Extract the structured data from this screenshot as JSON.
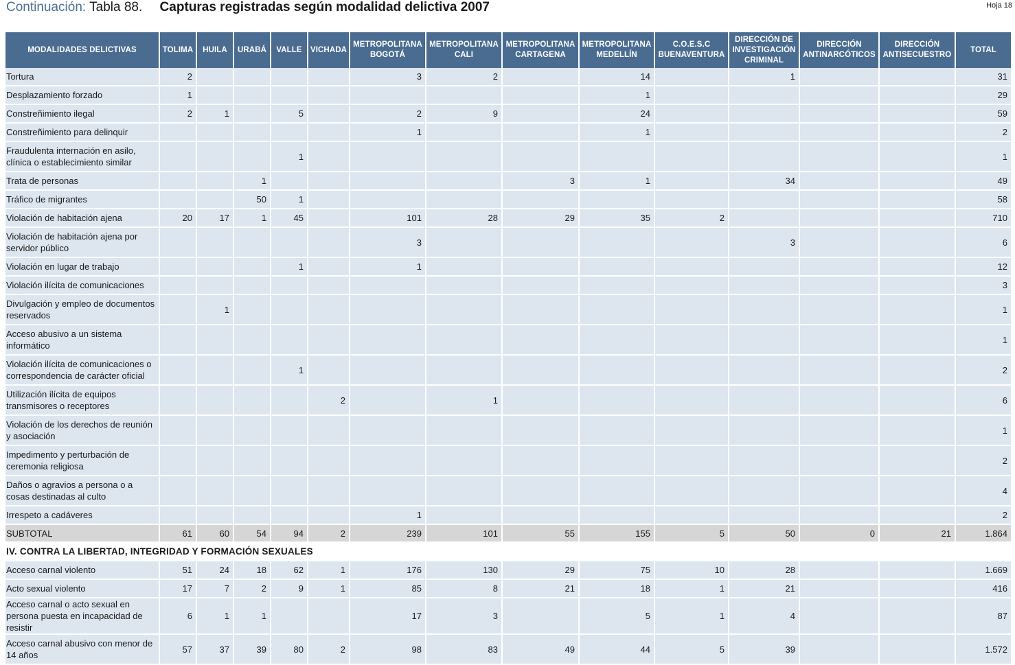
{
  "header": {
    "continuation": "Continuación:",
    "table_number": "Tabla 88.",
    "title": "Capturas registradas según modalidad delictiva 2007",
    "page": "Hoja 18"
  },
  "table": {
    "columns": [
      "MODALIDADES DELICTIVAS",
      "TOLIMA",
      "HUILA",
      "URABÁ",
      "VALLE",
      "VICHADA",
      "METROPOLITANA BOGOTÁ",
      "METROPOLITANA CALI",
      "METROPOLITANA CARTAGENA",
      "METROPOLITANA MEDELLÍN",
      "C.O.E.S.C BUENAVENTURA",
      "DIRECCIÓN DE INVESTIGACIÓN CRIMINAL",
      "DIRECCIÓN ANTINARCÓTICOS",
      "DIRECCIÓN ANTISECUESTRO",
      "TOTAL"
    ],
    "rows": [
      {
        "kind": "r1",
        "cells": [
          "Tortura",
          "2",
          "",
          "",
          "",
          "",
          "3",
          "2",
          "",
          "14",
          "",
          "1",
          "",
          "",
          "31"
        ]
      },
      {
        "kind": "r1",
        "cells": [
          "Desplazamiento forzado",
          "1",
          "",
          "",
          "",
          "",
          "",
          "",
          "",
          "1",
          "",
          "",
          "",
          "",
          "29"
        ]
      },
      {
        "kind": "r1",
        "cells": [
          "Constreñimiento ilegal",
          "2",
          "1",
          "",
          "5",
          "",
          "2",
          "9",
          "",
          "24",
          "",
          "",
          "",
          "",
          "59"
        ]
      },
      {
        "kind": "r1",
        "cells": [
          "Constreñimiento para delinquir",
          "",
          "",
          "",
          "",
          "",
          "1",
          "",
          "",
          "1",
          "",
          "",
          "",
          "",
          "2"
        ]
      },
      {
        "kind": "r2",
        "cells": [
          "Fraudulenta internación en asilo, clínica o establecimiento similar",
          "",
          "",
          "",
          "1",
          "",
          "",
          "",
          "",
          "",
          "",
          "",
          "",
          "",
          "1"
        ]
      },
      {
        "kind": "r1",
        "cells": [
          "Trata de personas",
          "",
          "",
          "1",
          "",
          "",
          "",
          "",
          "3",
          "1",
          "",
          "34",
          "",
          "",
          "49"
        ]
      },
      {
        "kind": "r1",
        "cells": [
          "Tráfico de migrantes",
          "",
          "",
          "50",
          "1",
          "",
          "",
          "",
          "",
          "",
          "",
          "",
          "",
          "",
          "58"
        ]
      },
      {
        "kind": "r1",
        "cells": [
          "Violación de habitación ajena",
          "20",
          "17",
          "1",
          "45",
          "",
          "101",
          "28",
          "29",
          "35",
          "2",
          "",
          "",
          "",
          "710"
        ]
      },
      {
        "kind": "r2",
        "cells": [
          "Violación de habitación ajena por servidor público",
          "",
          "",
          "",
          "",
          "",
          "3",
          "",
          "",
          "",
          "",
          "3",
          "",
          "",
          "6"
        ]
      },
      {
        "kind": "r1",
        "cells": [
          "Violación en lugar de trabajo",
          "",
          "",
          "",
          "1",
          "",
          "1",
          "",
          "",
          "",
          "",
          "",
          "",
          "",
          "12"
        ]
      },
      {
        "kind": "r1",
        "cells": [
          "Violación ilícita de comunicaciones",
          "",
          "",
          "",
          "",
          "",
          "",
          "",
          "",
          "",
          "",
          "",
          "",
          "",
          "3"
        ]
      },
      {
        "kind": "r2",
        "cells": [
          "Divulgación y empleo de documentos reservados",
          "",
          "1",
          "",
          "",
          "",
          "",
          "",
          "",
          "",
          "",
          "",
          "",
          "",
          "1"
        ]
      },
      {
        "kind": "r2",
        "cells": [
          "Acceso abusivo a un sistema informático",
          "",
          "",
          "",
          "",
          "",
          "",
          "",
          "",
          "",
          "",
          "",
          "",
          "",
          "1"
        ]
      },
      {
        "kind": "r2",
        "cells": [
          "Violación ilícita de comunicaciones o correspondencia de carácter oficial",
          "",
          "",
          "",
          "1",
          "",
          "",
          "",
          "",
          "",
          "",
          "",
          "",
          "",
          "2"
        ]
      },
      {
        "kind": "r2",
        "cells": [
          "Utilización ilícita de equipos transmisores o receptores",
          "",
          "",
          "",
          "",
          "2",
          "",
          "1",
          "",
          "",
          "",
          "",
          "",
          "",
          "6"
        ]
      },
      {
        "kind": "r2",
        "cells": [
          "Violación de los derechos de reunión y asociación",
          "",
          "",
          "",
          "",
          "",
          "",
          "",
          "",
          "",
          "",
          "",
          "",
          "",
          "1"
        ]
      },
      {
        "kind": "r2",
        "cells": [
          "Impedimento y perturbación de ceremonia religiosa",
          "",
          "",
          "",
          "",
          "",
          "",
          "",
          "",
          "",
          "",
          "",
          "",
          "",
          "2"
        ]
      },
      {
        "kind": "r2",
        "cells": [
          "Daños o agravios a persona o a cosas destinadas al culto",
          "",
          "",
          "",
          "",
          "",
          "",
          "",
          "",
          "",
          "",
          "",
          "",
          "",
          "4"
        ]
      },
      {
        "kind": "r1",
        "cells": [
          "Irrespeto a cadáveres",
          "",
          "",
          "",
          "",
          "",
          "1",
          "",
          "",
          "",
          "",
          "",
          "",
          "",
          "2"
        ]
      },
      {
        "kind": "subtotal",
        "cells": [
          "SUBTOTAL",
          "61",
          "60",
          "54",
          "94",
          "2",
          "239",
          "101",
          "55",
          "155",
          "5",
          "50",
          "0",
          "21",
          "1.864"
        ]
      },
      {
        "kind": "section",
        "cells": [
          "IV. CONTRA LA LIBERTAD, INTEGRIDAD Y FORMACIÓN SEXUALES"
        ]
      },
      {
        "kind": "r1",
        "cells": [
          "Acceso carnal violento",
          "51",
          "24",
          "18",
          "62",
          "1",
          "176",
          "130",
          "29",
          "75",
          "10",
          "28",
          "",
          "",
          "1.669"
        ]
      },
      {
        "kind": "r1",
        "cells": [
          "Acto sexual violento",
          "17",
          "7",
          "2",
          "9",
          "1",
          "85",
          "8",
          "21",
          "18",
          "1",
          "21",
          "",
          "",
          "416"
        ]
      },
      {
        "kind": "r2",
        "cells": [
          "Acceso carnal o acto sexual en persona puesta en incapacidad de resistir",
          "6",
          "1",
          "1",
          "",
          "",
          "17",
          "3",
          "",
          "5",
          "1",
          "4",
          "",
          "",
          "87"
        ]
      },
      {
        "kind": "r2",
        "cells": [
          "Acceso carnal abusivo con menor de 14 años",
          "57",
          "37",
          "39",
          "80",
          "2",
          "98",
          "83",
          "49",
          "44",
          "5",
          "39",
          "",
          "",
          "1.572"
        ]
      }
    ]
  }
}
